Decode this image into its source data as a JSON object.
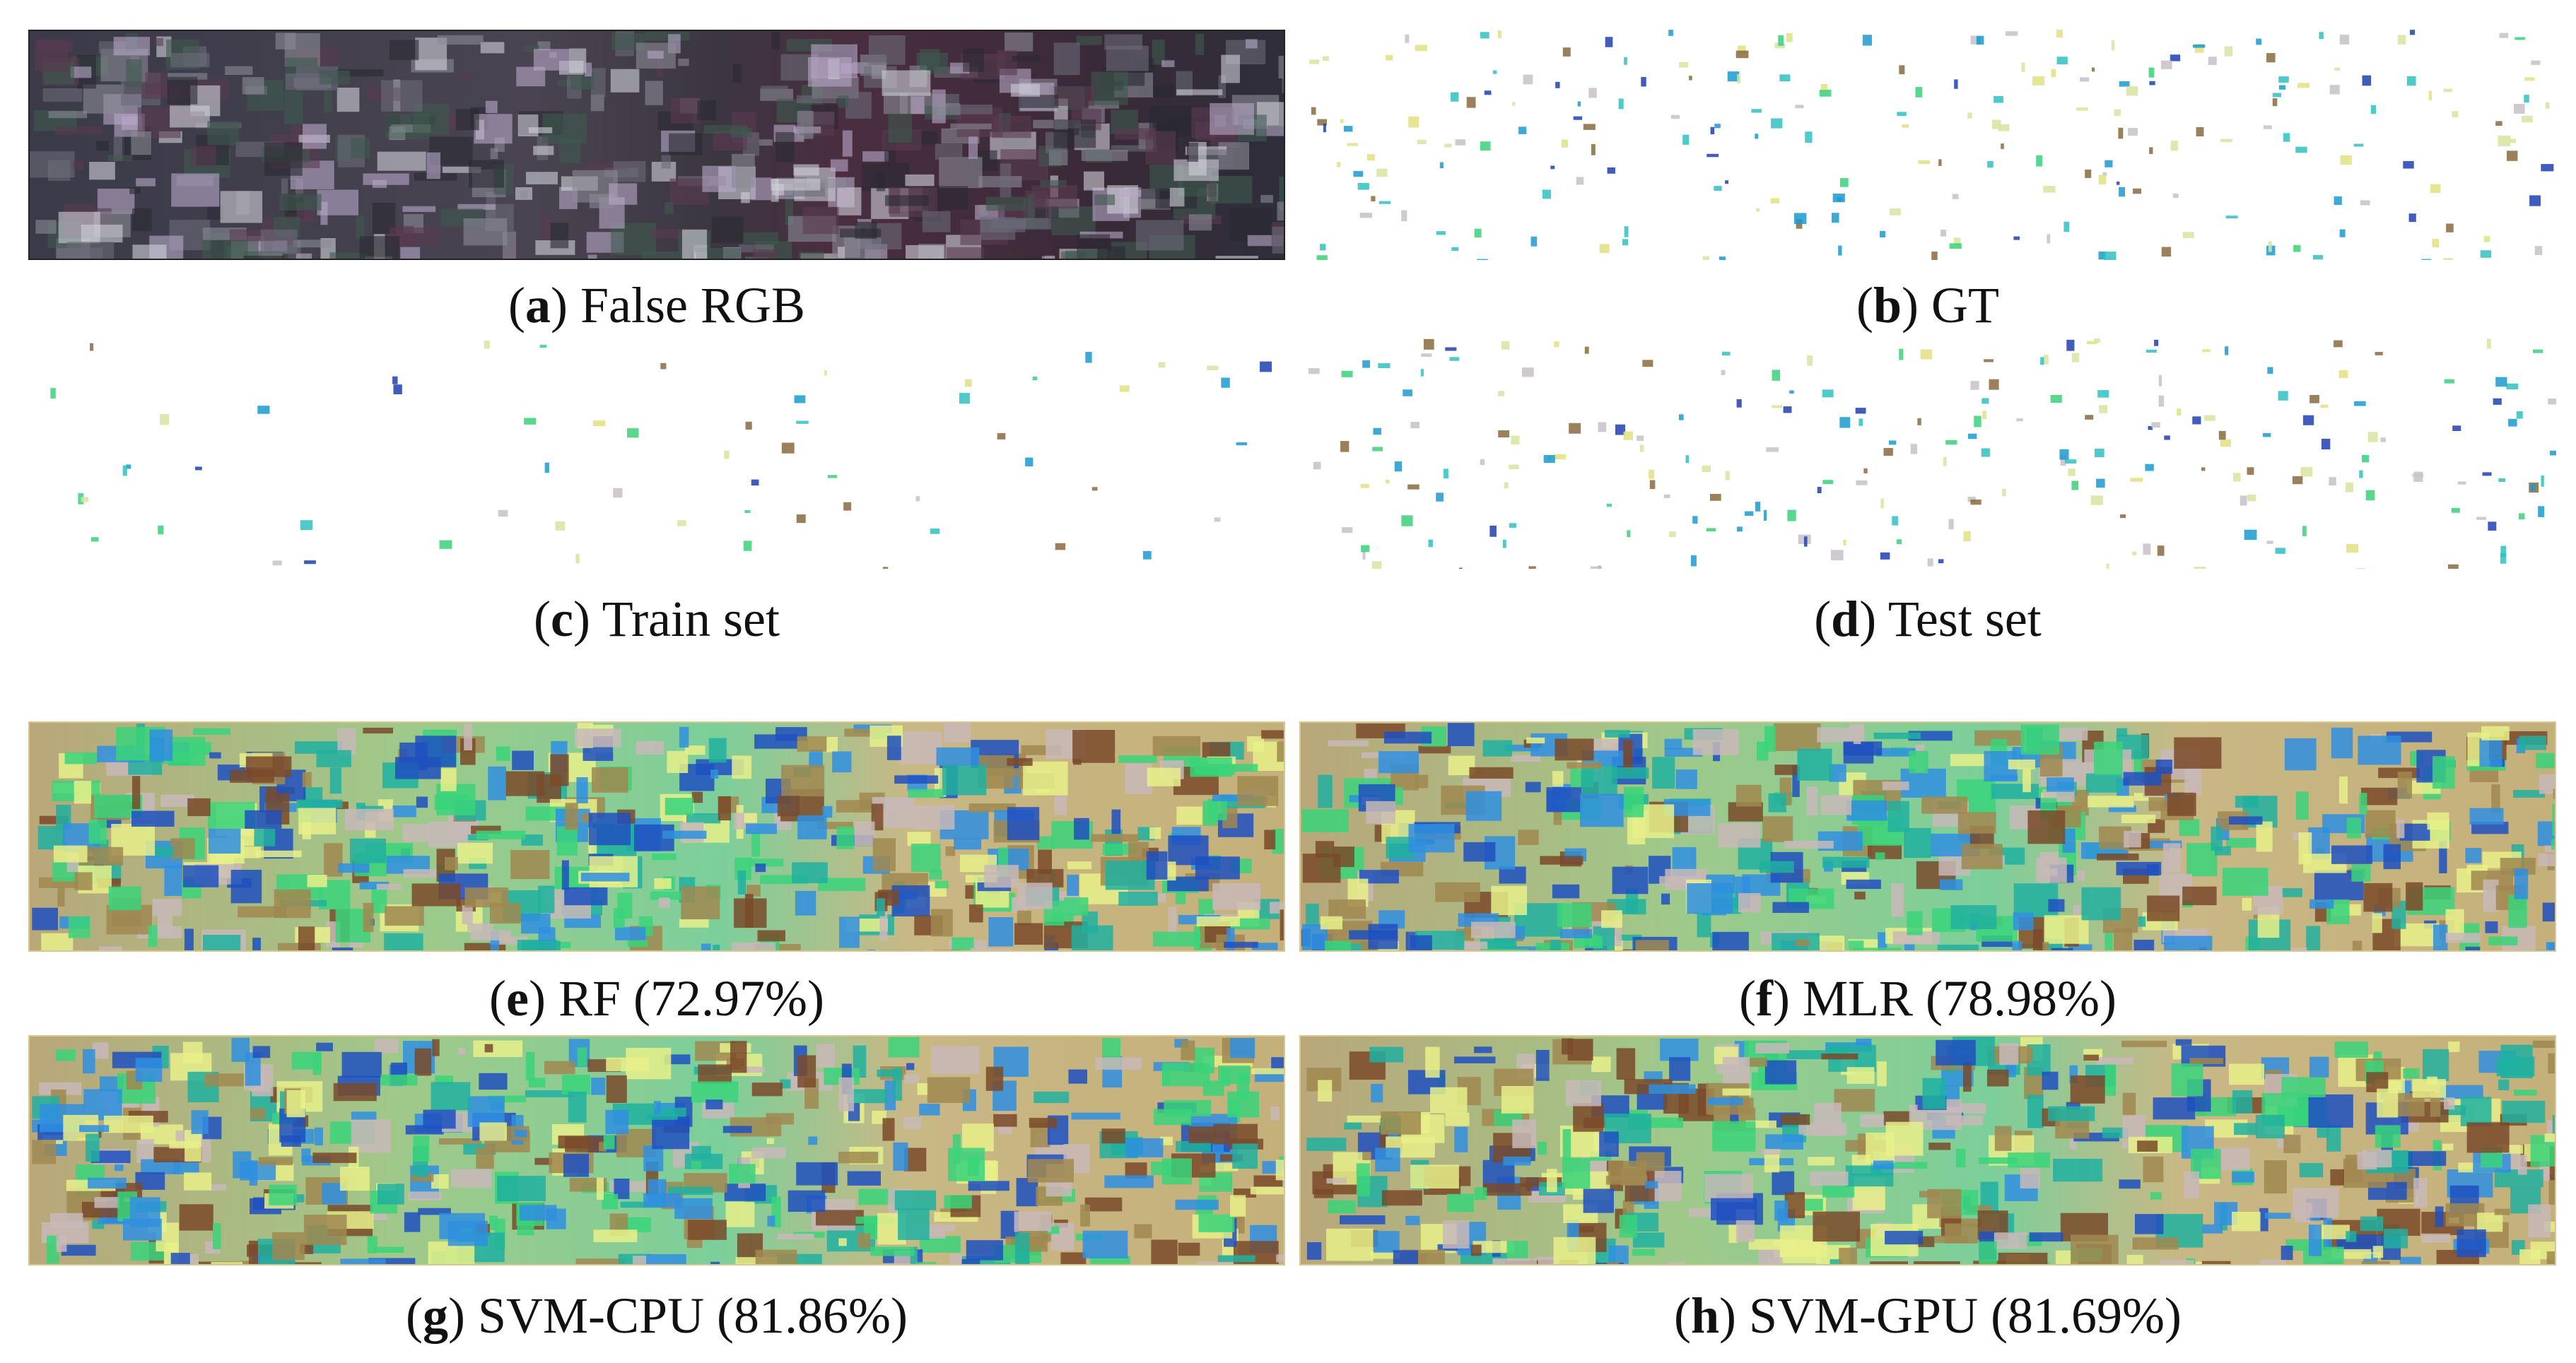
{
  "figure": {
    "panels": [
      {
        "open": "(",
        "letter": "a",
        "rest": ") False RGB"
      },
      {
        "open": "(",
        "letter": "b",
        "rest": ") GT"
      },
      {
        "open": "(",
        "letter": "c",
        "rest": ") Train set"
      },
      {
        "open": "(",
        "letter": "d",
        "rest": ") Test set"
      },
      {
        "open": "(",
        "letter": "e",
        "rest": ") RF (72.97%)"
      },
      {
        "open": "(",
        "letter": "f",
        "rest": ") MLR (78.98%)"
      },
      {
        "open": "(",
        "letter": "g",
        "rest": ") SVM-CPU (81.86%)"
      },
      {
        "open": "(",
        "letter": "h",
        "rest": ") SVM-GPU (81.69%)"
      }
    ]
  }
}
